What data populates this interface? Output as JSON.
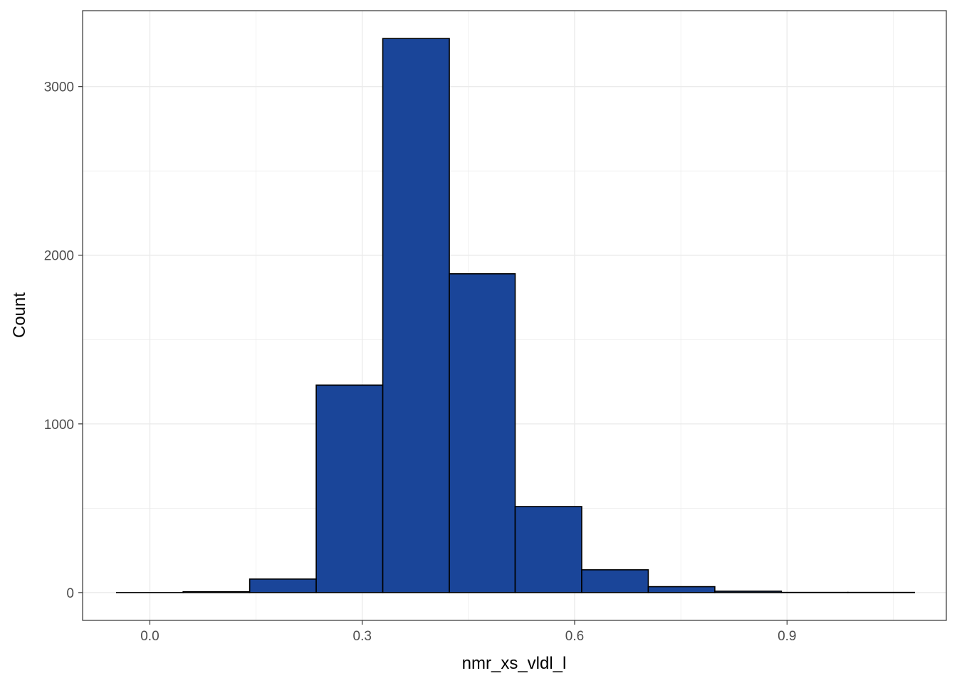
{
  "chart_data": {
    "type": "bar",
    "subtype": "histogram",
    "xlabel": "nmr_xs_vldl_l",
    "ylabel": "Count",
    "xlim": [
      -0.095,
      1.125
    ],
    "ylim": [
      -165,
      3450
    ],
    "x_ticks": [
      0.0,
      0.3,
      0.6,
      0.9
    ],
    "x_tick_labels": [
      "0.0",
      "0.3",
      "0.6",
      "0.9"
    ],
    "y_ticks": [
      0,
      1000,
      2000,
      3000
    ],
    "y_tick_labels": [
      "0",
      "1000",
      "2000",
      "3000"
    ],
    "grid": true,
    "bar_fill": "#1a4599",
    "bar_stroke": "#000000",
    "bins": [
      {
        "x0": -0.047,
        "x1": 0.047,
        "count": 0
      },
      {
        "x0": 0.047,
        "x1": 0.141,
        "count": 5
      },
      {
        "x0": 0.141,
        "x1": 0.235,
        "count": 80
      },
      {
        "x0": 0.235,
        "x1": 0.329,
        "count": 1230
      },
      {
        "x0": 0.329,
        "x1": 0.423,
        "count": 3285
      },
      {
        "x0": 0.423,
        "x1": 0.516,
        "count": 1890
      },
      {
        "x0": 0.516,
        "x1": 0.61,
        "count": 510
      },
      {
        "x0": 0.61,
        "x1": 0.704,
        "count": 135
      },
      {
        "x0": 0.704,
        "x1": 0.798,
        "count": 35
      },
      {
        "x0": 0.798,
        "x1": 0.892,
        "count": 8
      },
      {
        "x0": 0.892,
        "x1": 0.986,
        "count": 1
      },
      {
        "x0": 0.986,
        "x1": 1.08,
        "count": 1
      }
    ]
  }
}
